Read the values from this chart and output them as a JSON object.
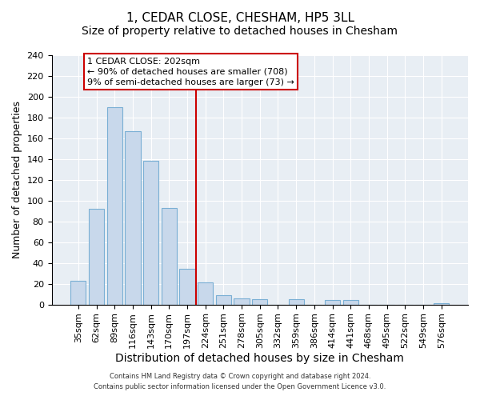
{
  "title": "1, CEDAR CLOSE, CHESHAM, HP5 3LL",
  "subtitle": "Size of property relative to detached houses in Chesham",
  "xlabel": "Distribution of detached houses by size in Chesham",
  "ylabel": "Number of detached properties",
  "categories": [
    "35sqm",
    "62sqm",
    "89sqm",
    "116sqm",
    "143sqm",
    "170sqm",
    "197sqm",
    "224sqm",
    "251sqm",
    "278sqm",
    "305sqm",
    "332sqm",
    "359sqm",
    "386sqm",
    "414sqm",
    "441sqm",
    "468sqm",
    "495sqm",
    "522sqm",
    "549sqm",
    "576sqm"
  ],
  "values": [
    23,
    92,
    190,
    167,
    138,
    93,
    34,
    21,
    9,
    6,
    5,
    0,
    5,
    0,
    4,
    4,
    0,
    0,
    0,
    0,
    1
  ],
  "bar_color": "#c8d8eb",
  "bar_edge_color": "#7aafd4",
  "vline_color": "#cc0000",
  "annotation_text": "1 CEDAR CLOSE: 202sqm\n← 90% of detached houses are smaller (708)\n9% of semi-detached houses are larger (73) →",
  "annotation_box_color": "#ffffff",
  "annotation_border_color": "#cc0000",
  "ylim": [
    0,
    240
  ],
  "yticks": [
    0,
    20,
    40,
    60,
    80,
    100,
    120,
    140,
    160,
    180,
    200,
    220,
    240
  ],
  "footer_line1": "Contains HM Land Registry data © Crown copyright and database right 2024.",
  "footer_line2": "Contains public sector information licensed under the Open Government Licence v3.0.",
  "bg_color": "#ffffff",
  "plot_bg_color": "#e8eef4",
  "grid_color": "#ffffff",
  "title_fontsize": 11,
  "subtitle_fontsize": 10,
  "xlabel_fontsize": 10,
  "ylabel_fontsize": 9,
  "tick_fontsize": 8,
  "annotation_fontsize": 8
}
